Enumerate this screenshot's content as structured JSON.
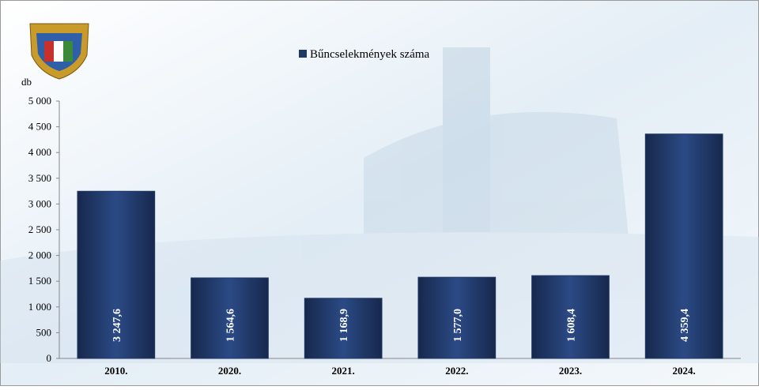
{
  "chart_data": {
    "type": "bar",
    "y_label": "db",
    "legend_label": "Bűncselekmények száma",
    "categories": [
      "2010.",
      "2020.",
      "2021.",
      "2022.",
      "2023.",
      "2024."
    ],
    "values": [
      3247.6,
      1564.6,
      1168.9,
      1577.0,
      1608.4,
      4359.4
    ],
    "value_labels": [
      "3 247,6",
      "1 564,6",
      "1 168,9",
      "1 577,0",
      "1 608,4",
      "4 359,4"
    ],
    "color": "#1f3864",
    "ylim": [
      0,
      5000
    ],
    "yticks": [
      0,
      500,
      {
        "value": 1000,
        "label": "1 000"
      },
      {
        "value": 1500,
        "label": "1 500"
      },
      {
        "value": 2000,
        "label": "2 000"
      },
      {
        "value": 2500,
        "label": "2 500"
      },
      {
        "value": 3000,
        "label": "3 000"
      },
      {
        "value": 3500,
        "label": "3 500"
      },
      {
        "value": 4000,
        "label": "4 000"
      },
      {
        "value": 4500,
        "label": "4 500"
      },
      {
        "value": 5000,
        "label": "5 000"
      }
    ],
    "grid": false
  }
}
